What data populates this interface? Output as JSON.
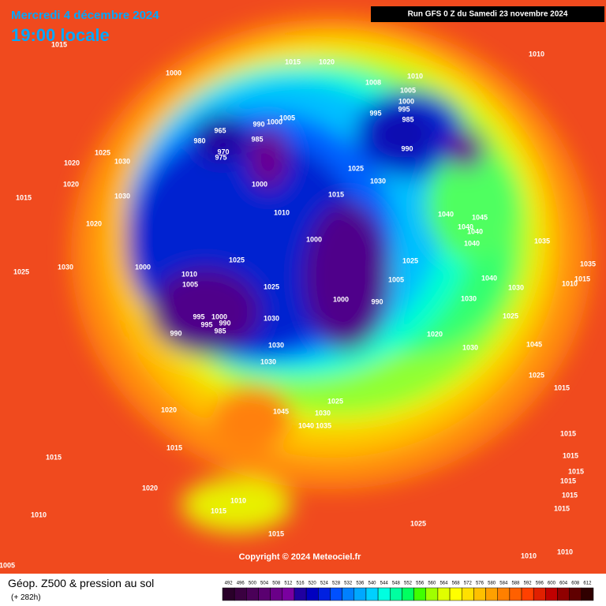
{
  "header": {
    "date": "Mercredi 4 décembre 2024",
    "time": "19:00 locale",
    "run": "Run GFS 0 Z du Samedi 23 novembre 2024"
  },
  "copyright": "Copyright © 2024 Meteociel.fr",
  "footer": {
    "title": "Géop. Z500 & pression au sol",
    "lead": "(+ 282h)"
  },
  "legend": {
    "values": [
      492,
      496,
      500,
      504,
      508,
      512,
      516,
      520,
      524,
      528,
      532,
      536,
      540,
      544,
      548,
      552,
      556,
      560,
      564,
      568,
      572,
      576,
      580,
      584,
      588,
      592,
      596,
      600,
      604,
      608,
      612
    ],
    "colors": [
      "#2a002a",
      "#3a0040",
      "#4a0058",
      "#5a0070",
      "#6a0088",
      "#7a00a0",
      "#2000a0",
      "#0000c0",
      "#0020e0",
      "#0050ff",
      "#0080ff",
      "#00a8ff",
      "#00d0ff",
      "#00ffe0",
      "#00ffa0",
      "#00ff60",
      "#40ff00",
      "#a0ff00",
      "#e0ff00",
      "#ffff00",
      "#ffe000",
      "#ffc000",
      "#ffa000",
      "#ff8000",
      "#ff6000",
      "#ff4000",
      "#e02000",
      "#c00000",
      "#900000",
      "#600000",
      "#300000"
    ]
  },
  "isobars": [
    "1015",
    "1000",
    "1015",
    "1020",
    "1008",
    "1010",
    "1010",
    "1005",
    "1000",
    "995",
    "995",
    "985",
    "990",
    "965",
    "980",
    "970",
    "975",
    "990",
    "985",
    "1000",
    "1005",
    "1000",
    "1025",
    "1030",
    "1020",
    "1020",
    "1030",
    "1015",
    "1020",
    "1025",
    "1030",
    "1000",
    "1010",
    "1015",
    "1025",
    "1030",
    "1000",
    "1025",
    "1010",
    "1005",
    "1025",
    "995",
    "995",
    "1000",
    "990",
    "985",
    "990",
    "1030",
    "1030",
    "1030",
    "1000",
    "990",
    "1005",
    "1025",
    "1020",
    "1030",
    "1040",
    "1045",
    "1040",
    "1040",
    "1040",
    "1035",
    "1035",
    "1015",
    "1010",
    "1040",
    "1030",
    "1030",
    "1025",
    "1045",
    "1025",
    "1015",
    "1045",
    "1030",
    "1025",
    "1040",
    "1035",
    "1020",
    "1015",
    "1015",
    "1020",
    "1010",
    "1015",
    "1010",
    "1015",
    "1025",
    "1015",
    "1015",
    "1015",
    "1015",
    "1015",
    "1015",
    "1010",
    "1010",
    "1005"
  ]
}
